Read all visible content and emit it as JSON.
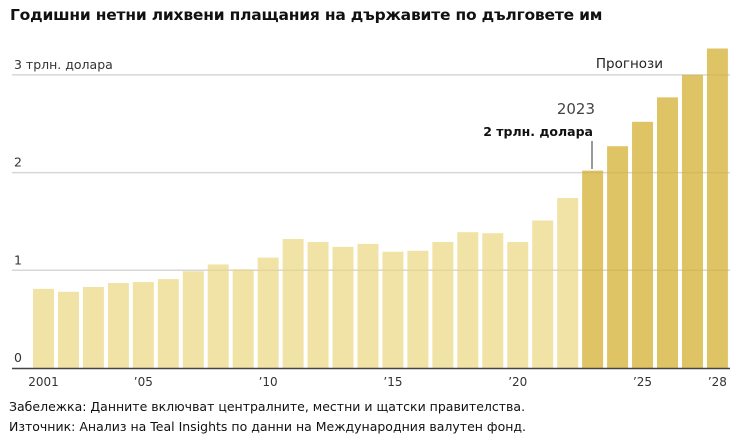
{
  "chart_data": {
    "type": "bar",
    "title": "Годишни нетни лихвени плащания на държавите по дълговете им",
    "xlabel": "",
    "ylabel": "",
    "ylim": [
      0,
      3.3
    ],
    "y_ticks": [
      {
        "value": 0,
        "label": "0"
      },
      {
        "value": 1,
        "label": "1"
      },
      {
        "value": 2,
        "label": "2"
      },
      {
        "value": 3,
        "label": "3 трлн. долара"
      }
    ],
    "x_ticks": [
      {
        "year": 2001,
        "label": "2001"
      },
      {
        "year": 2005,
        "label": "’05"
      },
      {
        "year": 2010,
        "label": "’10"
      },
      {
        "year": 2015,
        "label": "’15"
      },
      {
        "year": 2020,
        "label": "’20"
      },
      {
        "year": 2025,
        "label": "’25"
      },
      {
        "year": 2028,
        "label": "’28"
      }
    ],
    "categories": [
      2001,
      2002,
      2003,
      2004,
      2005,
      2006,
      2007,
      2008,
      2009,
      2010,
      2011,
      2012,
      2013,
      2014,
      2015,
      2016,
      2017,
      2018,
      2019,
      2020,
      2021,
      2022,
      2023,
      2024,
      2025,
      2026,
      2027,
      2028
    ],
    "values": [
      0.81,
      0.78,
      0.83,
      0.87,
      0.88,
      0.91,
      0.99,
      1.06,
      1.01,
      1.13,
      1.32,
      1.29,
      1.24,
      1.27,
      1.19,
      1.2,
      1.29,
      1.39,
      1.38,
      1.29,
      1.51,
      1.74,
      2.02,
      2.27,
      2.52,
      2.77,
      3.0,
      3.27
    ],
    "forecast_from": 2023,
    "colors": {
      "actual": "#f1e3a6",
      "forecast": "#dfc465",
      "grid": "#e3e3e3",
      "axis": "#444444"
    },
    "grid": true,
    "annotations": {
      "forecast_label": "Прогнози",
      "highlight_year": "2023",
      "highlight_value": "2 трлн. долара"
    }
  },
  "notes": {
    "note": "Забележка: Данните включват централните, местни и щатски правителства.",
    "source": "Източник: Анализ на Teal Insights по данни на Международния валутен фонд."
  }
}
